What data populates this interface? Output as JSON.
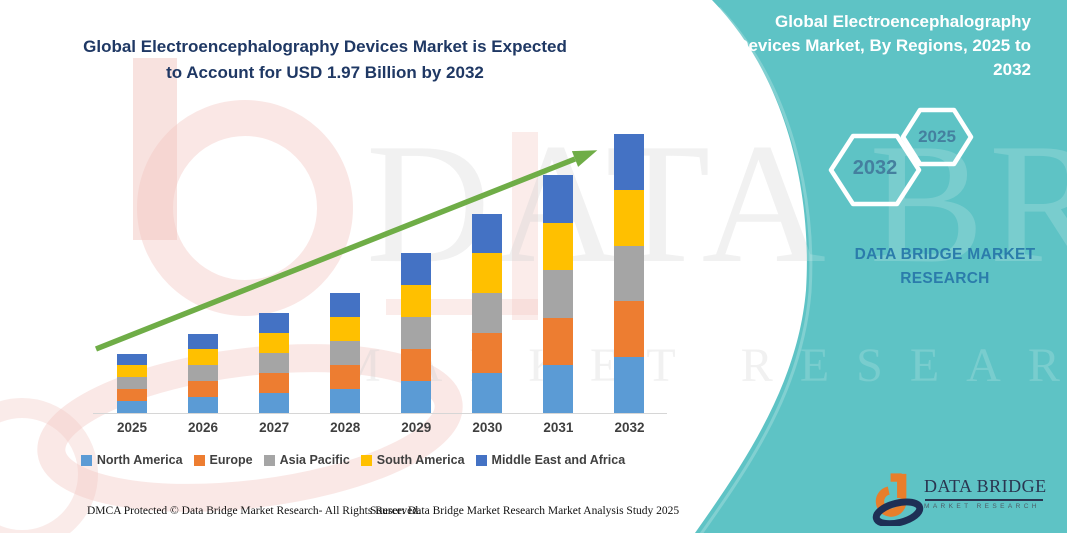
{
  "chart_section": {
    "title": "Global Electroencephalography Devices Market is Expected to Account for USD 1.97 Billion by 2032"
  },
  "chart_data": {
    "type": "bar",
    "stacked": true,
    "title": "Global Electroencephalography Devices Market is Expected to Account for USD 1.97 Billion by 2032",
    "unit": "USD Billion",
    "categories": [
      "2025",
      "2026",
      "2027",
      "2028",
      "2029",
      "2030",
      "2031",
      "2032"
    ],
    "series": [
      {
        "name": "North America",
        "color": "#5B9BD5",
        "values": [
          0.084,
          0.112,
          0.142,
          0.17,
          0.226,
          0.282,
          0.336,
          0.394
        ]
      },
      {
        "name": "Europe",
        "color": "#ED7D31",
        "values": [
          0.084,
          0.112,
          0.142,
          0.17,
          0.226,
          0.282,
          0.336,
          0.394
        ]
      },
      {
        "name": "Asia Pacific",
        "color": "#A5A5A5",
        "values": [
          0.084,
          0.112,
          0.142,
          0.17,
          0.226,
          0.282,
          0.336,
          0.394
        ]
      },
      {
        "name": "South America",
        "color": "#FFC000",
        "values": [
          0.084,
          0.112,
          0.142,
          0.17,
          0.226,
          0.282,
          0.336,
          0.394
        ]
      },
      {
        "name": "Middle East and Africa",
        "color": "#4472C4",
        "values": [
          0.084,
          0.112,
          0.142,
          0.17,
          0.226,
          0.282,
          0.336,
          0.394
        ]
      }
    ],
    "totals": [
      0.42,
      0.56,
      0.71,
      0.85,
      1.13,
      1.41,
      1.68,
      1.97
    ],
    "ylim": [
      0,
      2.0
    ],
    "y_axis_visible": false,
    "gridlines": false,
    "legend_position": "bottom",
    "trend_arrow": true,
    "trend_arrow_color": "#6FAD47",
    "xlabel": "",
    "ylabel": ""
  },
  "side_panel": {
    "bg_color": "#5EC3C5",
    "title": "Global Electroencephalography Devices Market, By Regions, 2025 to 2032",
    "hexagons": [
      {
        "label": "2032"
      },
      {
        "label": "2025"
      }
    ],
    "brand_text": "DATA BRIDGE MARKET RESEARCH"
  },
  "watermark": {
    "line1": "DATA BRIDGE",
    "line2": "MARKET RESEARCH"
  },
  "logo": {
    "name": "DATA BRIDGE",
    "subtitle": "MARKET RESEARCH"
  },
  "footer": {
    "dmca": "DMCA Protected © Data Bridge Market Research-  All Rights Reserved.",
    "source": "Source: Data Bridge Market Research  Market Analysis Study 2025"
  }
}
